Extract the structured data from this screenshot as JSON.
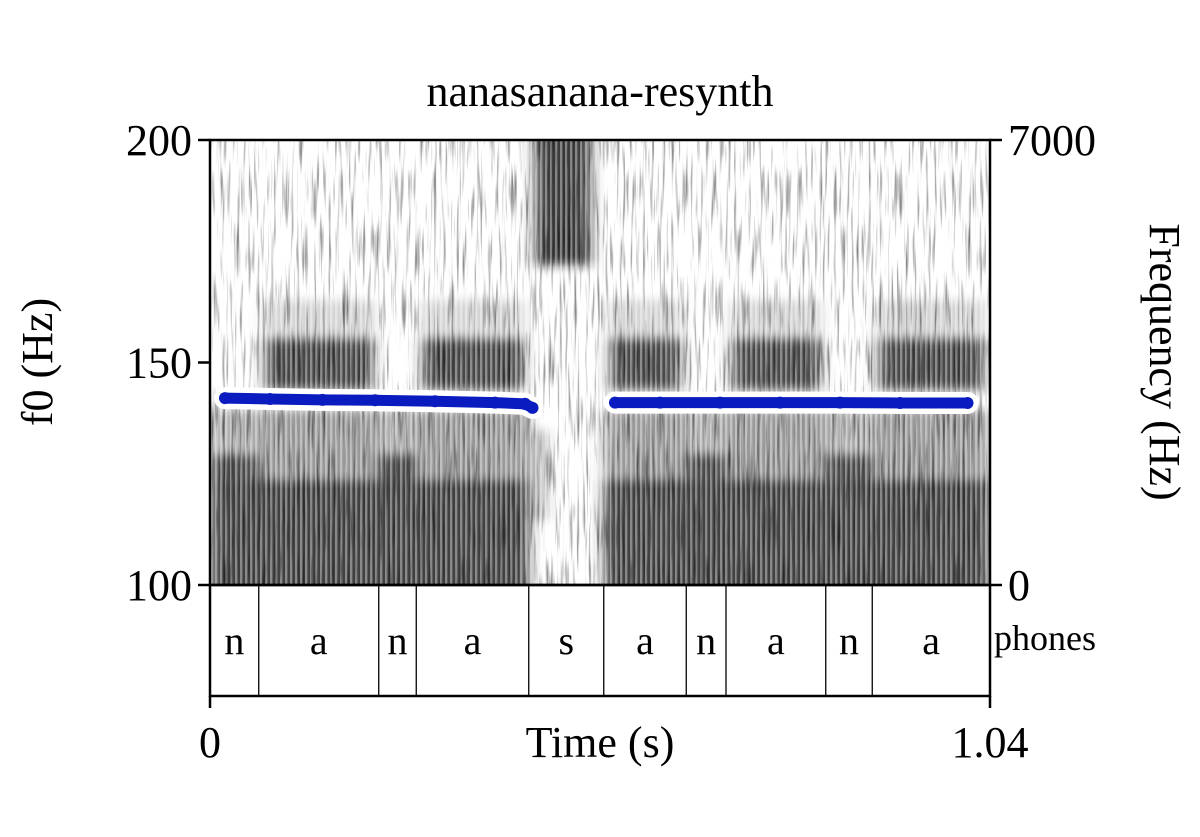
{
  "chart_data": {
    "type": "line",
    "title": "nanasanana-resynth",
    "xlabel": "Time (s)",
    "ylabel": "f0 (Hz)",
    "ylabel_right": "Frequency (Hz)",
    "xlim": [
      0,
      1.04
    ],
    "ylim": [
      100,
      200
    ],
    "ylim_right": [
      0,
      7000
    ],
    "x_ticks": [
      "0",
      "1.04"
    ],
    "y_ticks": [
      "100",
      "150",
      "200"
    ],
    "y_ticks_right": [
      "0",
      "7000"
    ],
    "grid": false,
    "colors": {
      "f0_line": "#0a1cbf",
      "f0_halo": "#ffffff"
    },
    "series": [
      {
        "x": [
          0.02,
          0.08,
          0.15,
          0.22,
          0.3,
          0.38,
          0.42
        ],
        "y": [
          142,
          141.8,
          141.6,
          141.5,
          141.3,
          141.0,
          140.7
        ]
      },
      {
        "x": [
          0.42,
          0.43
        ],
        "y": [
          140.7,
          139.8
        ]
      },
      {
        "x": [
          0.54,
          0.6,
          0.68,
          0.76,
          0.84,
          0.92,
          1.01
        ],
        "y": [
          141.0,
          141.0,
          141.0,
          141.0,
          141.0,
          140.9,
          140.9
        ]
      }
    ],
    "spectrogram": {
      "segments": [
        {
          "start": 0.0,
          "end": 0.065,
          "kind": "nasal"
        },
        {
          "start": 0.065,
          "end": 0.225,
          "kind": "vowel"
        },
        {
          "start": 0.225,
          "end": 0.275,
          "kind": "nasal"
        },
        {
          "start": 0.275,
          "end": 0.425,
          "kind": "vowel"
        },
        {
          "start": 0.425,
          "end": 0.525,
          "kind": "fricative"
        },
        {
          "start": 0.525,
          "end": 0.635,
          "kind": "vowel"
        },
        {
          "start": 0.635,
          "end": 0.688,
          "kind": "nasal"
        },
        {
          "start": 0.688,
          "end": 0.821,
          "kind": "vowel"
        },
        {
          "start": 0.821,
          "end": 0.883,
          "kind": "nasal"
        },
        {
          "start": 0.883,
          "end": 1.04,
          "kind": "vowel"
        }
      ]
    },
    "phones_tier": {
      "name": "phones",
      "intervals": [
        {
          "label": "n",
          "start": 0.0,
          "end": 0.065
        },
        {
          "label": "a",
          "start": 0.065,
          "end": 0.225
        },
        {
          "label": "n",
          "start": 0.225,
          "end": 0.275
        },
        {
          "label": "a",
          "start": 0.275,
          "end": 0.425
        },
        {
          "label": "s",
          "start": 0.425,
          "end": 0.525
        },
        {
          "label": "a",
          "start": 0.525,
          "end": 0.635
        },
        {
          "label": "n",
          "start": 0.635,
          "end": 0.688
        },
        {
          "label": "a",
          "start": 0.688,
          "end": 0.821
        },
        {
          "label": "n",
          "start": 0.821,
          "end": 0.883
        },
        {
          "label": "a",
          "start": 0.883,
          "end": 1.04
        }
      ]
    }
  }
}
